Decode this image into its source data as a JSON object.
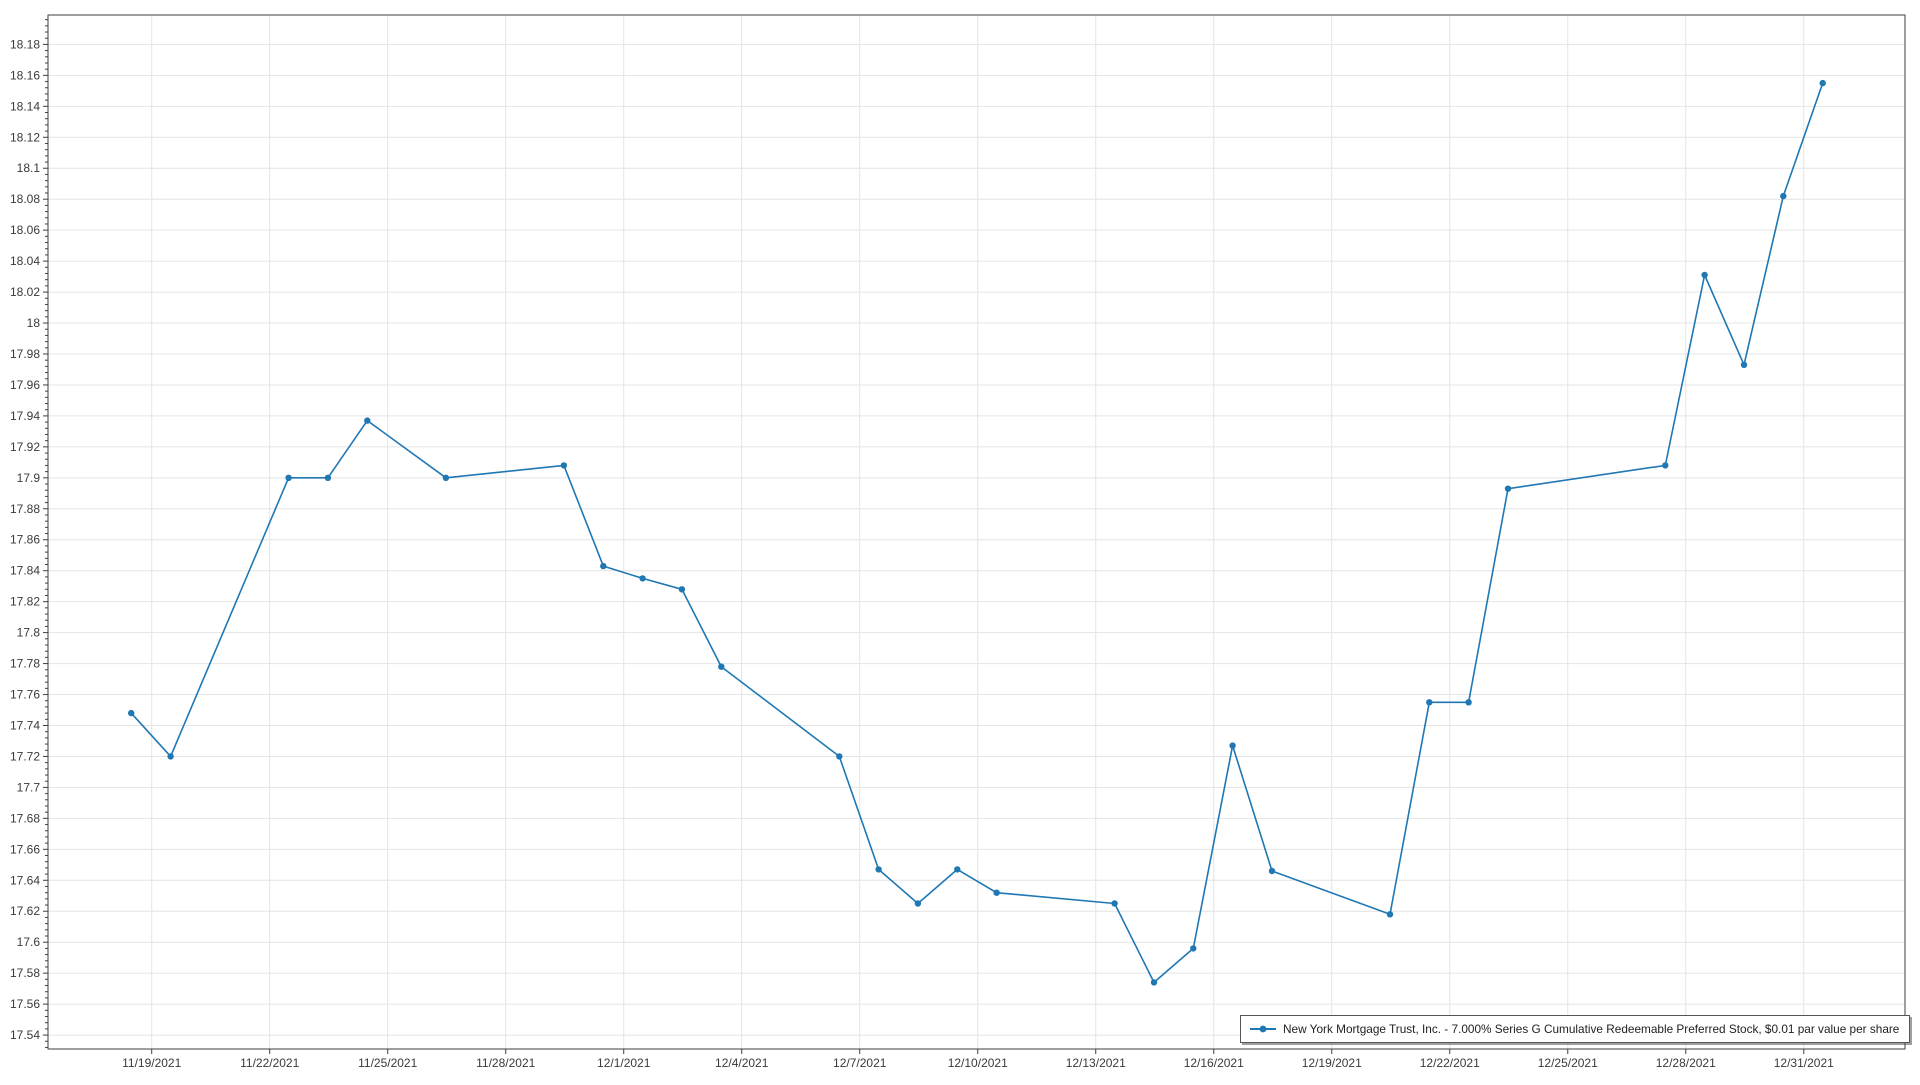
{
  "chart_data": {
    "type": "line",
    "title": "",
    "legend_position": "bottom-right",
    "grid": true,
    "colors": {
      "series": "#1f77b4",
      "gridline": "#e4e4e4",
      "axis": "#3f3f3f",
      "label": "#3a3a3a",
      "legend_border": "#565656",
      "background": "#ffffff"
    },
    "x_axis": {
      "origin": "11/19/2021",
      "tick_labels": [
        "11/19/2021",
        "11/22/2021",
        "11/25/2021",
        "11/28/2021",
        "12/1/2021",
        "12/4/2021",
        "12/7/2021",
        "12/10/2021",
        "12/13/2021",
        "12/16/2021",
        "12/19/2021",
        "12/22/2021",
        "12/25/2021",
        "12/28/2021",
        "12/31/2021"
      ]
    },
    "y_axis": {
      "tick_min": 17.54,
      "tick_max": 18.18,
      "tick_step": 0.02,
      "minor_tick_step": 0.004,
      "display_min": 17.531,
      "display_max": 18.199
    },
    "series": [
      {
        "name": "New York Mortgage Trust, Inc. - 7.000% Series G Cumulative Redeemable Preferred Stock, $0.01 par value per share",
        "x": [
          "11/18/2021",
          "11/19/2021",
          "11/22/2021",
          "11/23/2021",
          "11/24/2021",
          "11/26/2021",
          "11/29/2021",
          "11/30/2021",
          "12/1/2021",
          "12/2/2021",
          "12/3/2021",
          "12/6/2021",
          "12/7/2021",
          "12/8/2021",
          "12/9/2021",
          "12/10/2021",
          "12/13/2021",
          "12/14/2021",
          "12/15/2021",
          "12/16/2021",
          "12/17/2021",
          "12/20/2021",
          "12/21/2021",
          "12/22/2021",
          "12/23/2021",
          "12/27/2021",
          "12/28/2021",
          "12/29/2021",
          "12/30/2021",
          "12/31/2021"
        ],
        "y": [
          17.748,
          17.72,
          17.9,
          17.9,
          17.937,
          17.9,
          17.908,
          17.843,
          17.835,
          17.828,
          17.778,
          17.72,
          17.647,
          17.625,
          17.647,
          17.632,
          17.625,
          17.574,
          17.596,
          17.727,
          17.646,
          17.618,
          17.755,
          17.755,
          17.893,
          17.908,
          18.031,
          17.973,
          18.082,
          18.155
        ]
      }
    ]
  }
}
